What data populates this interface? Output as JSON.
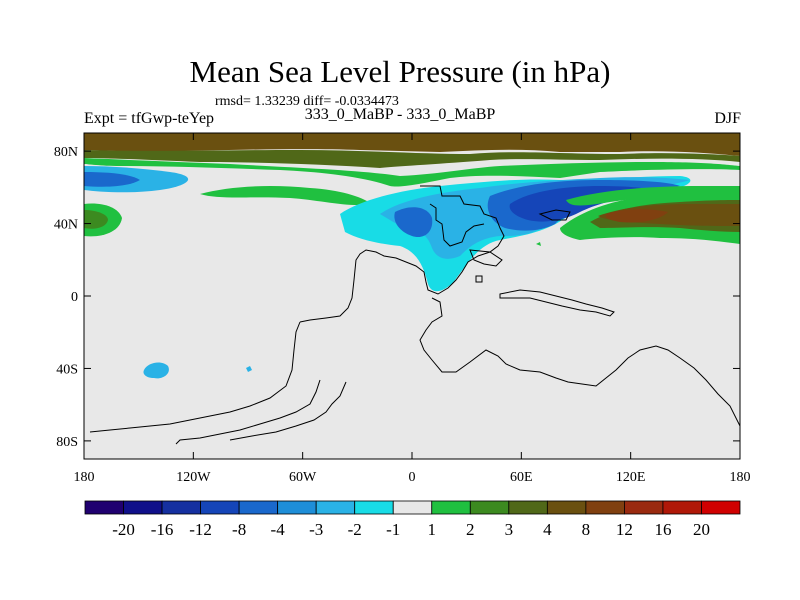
{
  "title": "Mean Sea Level Pressure (in hPa)",
  "stats": "rmsd= 1.33239 diff= -0.0334473",
  "experiment_label": "Expt = tfGwp-teYep",
  "experiment_name": "333_0_MaBP - 333_0_MaBP",
  "season": "DJF",
  "map": {
    "background_color": "#e8e8e8",
    "lat_ticks": [
      {
        "value": 80,
        "label": "80N"
      },
      {
        "value": 40,
        "label": "40N"
      },
      {
        "value": 0,
        "label": "0"
      },
      {
        "value": -40,
        "label": "40S"
      },
      {
        "value": -80,
        "label": "80S"
      }
    ],
    "lon_ticks": [
      {
        "value": -180,
        "label": "180"
      },
      {
        "value": -120,
        "label": "120W"
      },
      {
        "value": -60,
        "label": "60W"
      },
      {
        "value": 0,
        "label": "0"
      },
      {
        "value": 60,
        "label": "60E"
      },
      {
        "value": 120,
        "label": "120E"
      },
      {
        "value": 180,
        "label": "180"
      }
    ]
  },
  "colorbar": {
    "colors": [
      "#200070",
      "#10108a",
      "#1530a0",
      "#1545b8",
      "#1a68cc",
      "#1e8ed8",
      "#2ab2e6",
      "#18dce6",
      "#e8e8e8",
      "#20c040",
      "#3c8a20",
      "#506818",
      "#6a5010",
      "#804010",
      "#9a2a10",
      "#b01808",
      "#d00000"
    ],
    "labels": [
      "-20",
      "-16",
      "-12",
      "-8",
      "-4",
      "-3",
      "-2",
      "-1",
      "1",
      "2",
      "3",
      "4",
      "8",
      "12",
      "16",
      "20"
    ]
  }
}
